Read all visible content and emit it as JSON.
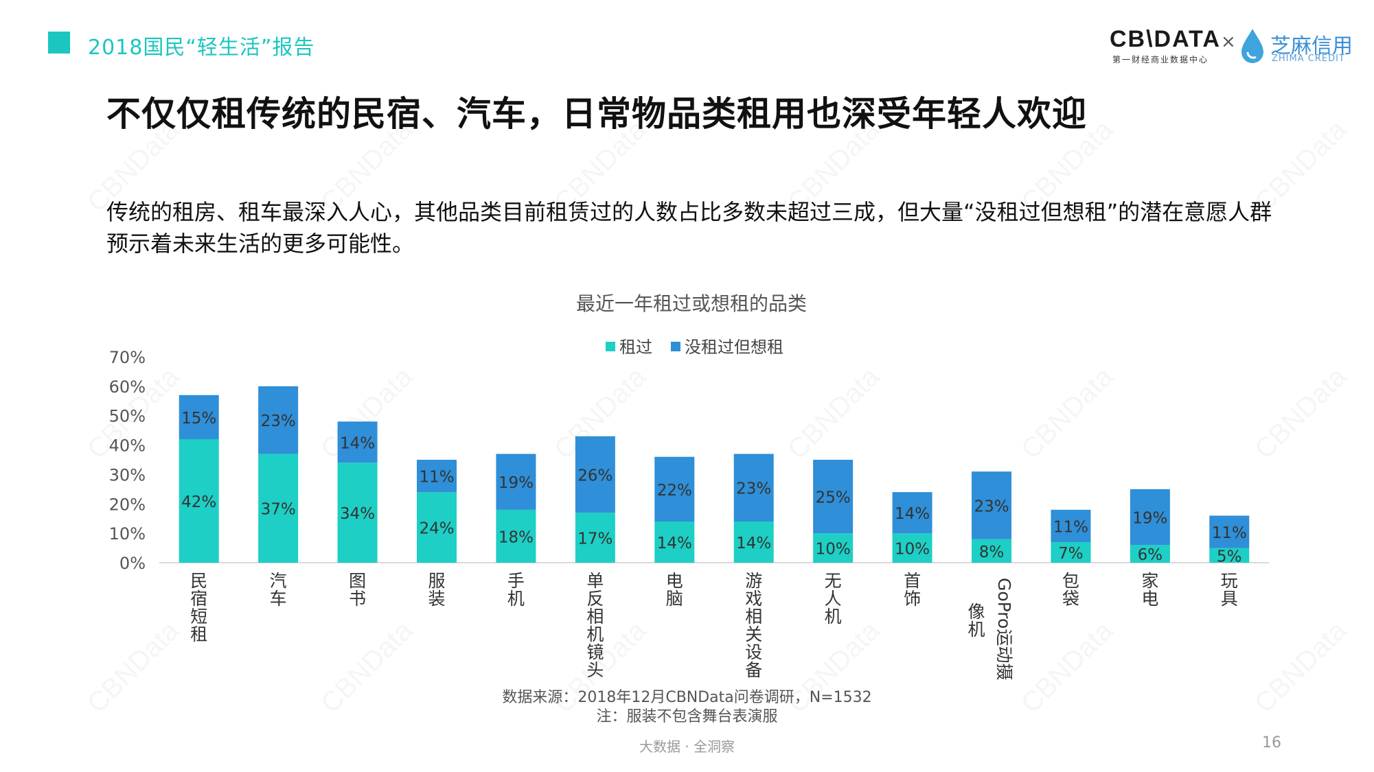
{
  "header": {
    "title": "2018国民“轻生活”报告"
  },
  "logos": {
    "cbn": "CB\\DATA",
    "cbn_sub": "第一财经商业数据中心",
    "times": "×",
    "zhima": "芝麻信用",
    "zhima_sub": "ZHIMA CREDIT"
  },
  "main_title": "不仅仅租传统的民宿、汽车，日常物品类租用也深受年轻人欢迎",
  "description": "传统的租房、租车最深入人心，其他品类目前租赁过的人数占比多数未超过三成，但大量“没租过但想租”的潜在意愿人群预示着未来生活的更多可能性。",
  "colors": {
    "rented": "#1dcfc5",
    "want": "#2f8fd8",
    "accent": "#1bc6c0"
  },
  "chart_data": {
    "type": "bar",
    "stacked": true,
    "title": "最近一年租过或想租的品类",
    "legend_position": "top-center",
    "categories": [
      "民宿短租",
      "汽车",
      "图书",
      "服装",
      "手机",
      "单反相机镜头",
      "电脑",
      "游戏相关设备",
      "无人机",
      "首饰",
      "GoPro运动摄像机",
      "包袋",
      "家电",
      "玩具"
    ],
    "series": [
      {
        "name": "租过",
        "color": "#1dcfc5",
        "values": [
          42,
          37,
          34,
          24,
          18,
          17,
          14,
          14,
          10,
          10,
          8,
          7,
          6,
          5
        ]
      },
      {
        "name": "没租过但想租",
        "color": "#2f8fd8",
        "values": [
          15,
          23,
          14,
          11,
          19,
          26,
          22,
          23,
          25,
          14,
          23,
          11,
          19,
          11
        ]
      }
    ],
    "ylim": [
      0,
      70
    ],
    "yticks": [
      "0%",
      "10%",
      "20%",
      "30%",
      "40%",
      "50%",
      "60%",
      "70%"
    ],
    "grid": false
  },
  "source": "数据来源：2018年12月CBNData问卷调研，N=1532",
  "note": "注：服装不包含舞台表演服",
  "footer": "大数据 · 全洞察",
  "page_number": "16",
  "watermark": "CBNData"
}
